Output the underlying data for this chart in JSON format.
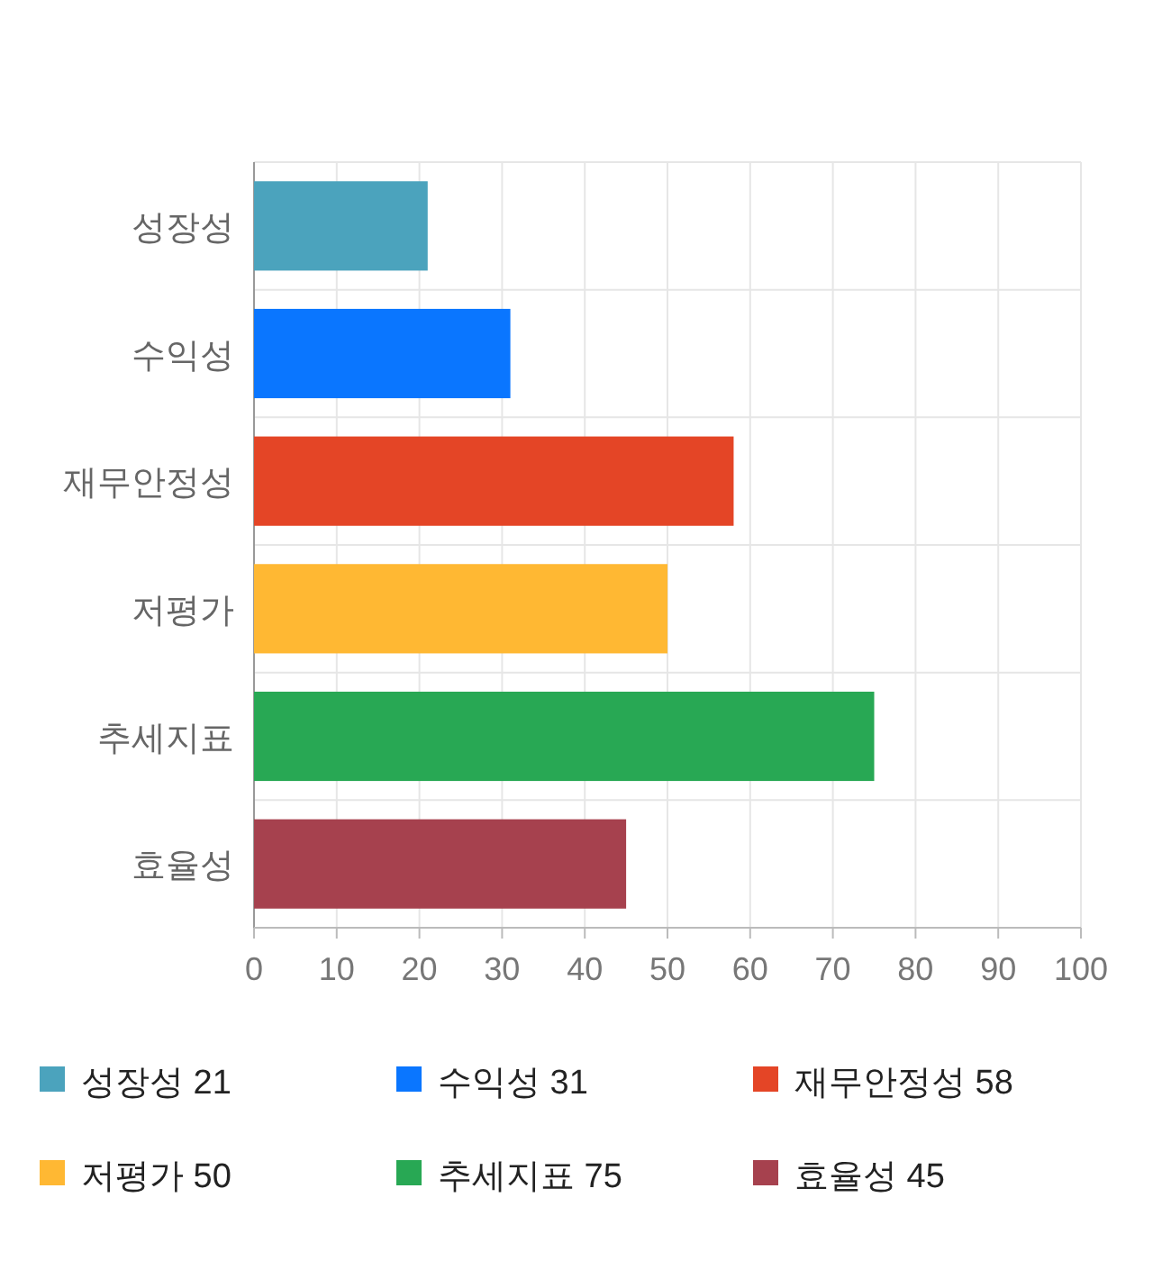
{
  "chart_data": {
    "type": "bar",
    "orientation": "horizontal",
    "stacked": true,
    "categories": [
      "성장성",
      "수익성",
      "재무안정성",
      "저평가",
      "추세지표",
      "효율성"
    ],
    "series": [
      {
        "name": "성장성 21",
        "color": "#4ba3bd",
        "values": [
          21,
          null,
          null,
          null,
          null,
          null
        ]
      },
      {
        "name": "수익성 31",
        "color": "#0a76ff",
        "values": [
          null,
          31,
          null,
          null,
          null,
          null
        ]
      },
      {
        "name": "재무안정성 58",
        "color": "#e44526",
        "values": [
          null,
          null,
          58,
          null,
          null,
          null
        ]
      },
      {
        "name": "저평가 50",
        "color": "#ffb833",
        "values": [
          null,
          null,
          null,
          50,
          null,
          null
        ]
      },
      {
        "name": "추세지표 75",
        "color": "#28a854",
        "values": [
          null,
          null,
          null,
          null,
          75,
          null
        ]
      },
      {
        "name": "효율성 45",
        "color": "#a6414e",
        "values": [
          null,
          null,
          null,
          null,
          null,
          45
        ]
      }
    ],
    "xlim": [
      0,
      100
    ],
    "xticks": [
      0,
      10,
      20,
      30,
      40,
      50,
      60,
      70,
      80,
      90,
      100
    ],
    "grid": true,
    "legend": "bottom"
  }
}
